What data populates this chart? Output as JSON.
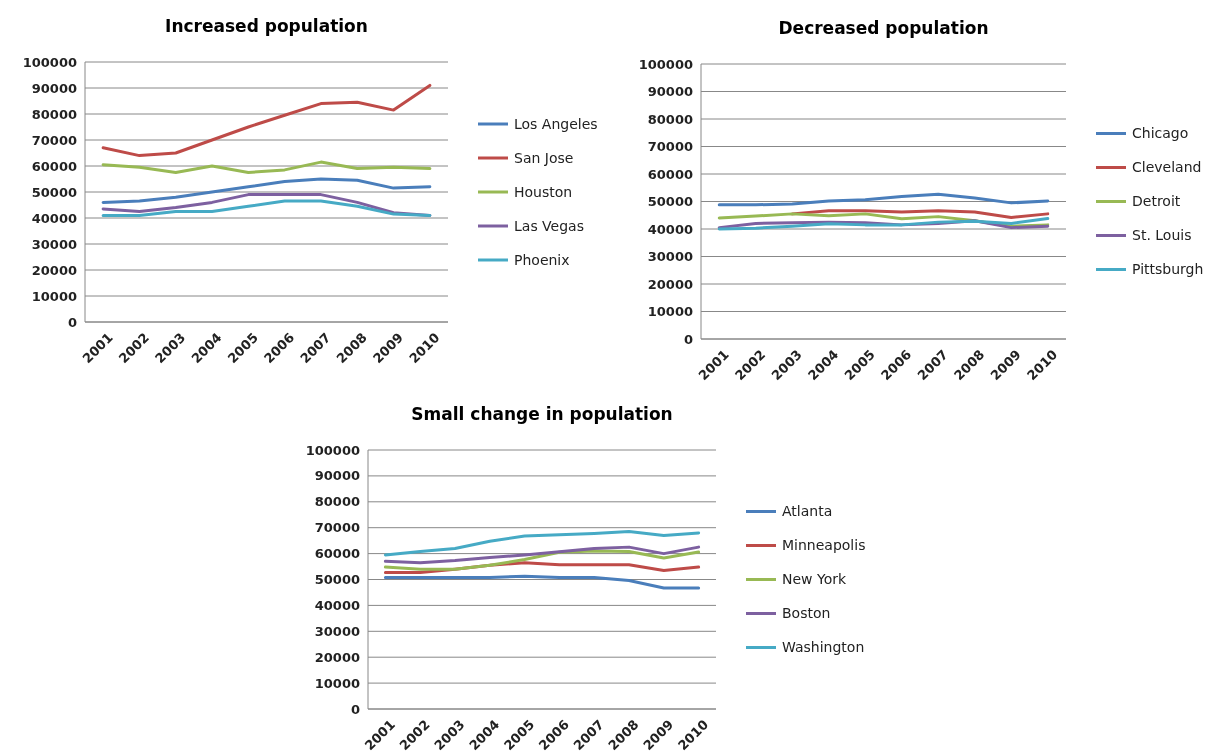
{
  "chart_data": [
    {
      "type": "line",
      "title": "Increased population",
      "categories": [
        "2001",
        "2002",
        "2003",
        "2004",
        "2005",
        "2006",
        "2007",
        "2008",
        "2009",
        "2010"
      ],
      "ylim": [
        0,
        100000
      ],
      "yticks": [
        0,
        10000,
        20000,
        30000,
        40000,
        50000,
        60000,
        70000,
        80000,
        90000,
        100000
      ],
      "grid": "y",
      "legend": "right",
      "series": [
        {
          "name": "Los Angeles",
          "color": "#4a7ebb",
          "values": [
            46000,
            46500,
            48000,
            50000,
            52000,
            54000,
            55000,
            54500,
            51500,
            52000
          ]
        },
        {
          "name": "San Jose",
          "color": "#be4b48",
          "values": [
            67000,
            64000,
            65000,
            70000,
            75000,
            79500,
            84000,
            84500,
            81500,
            91000
          ]
        },
        {
          "name": "Houston",
          "color": "#98b954",
          "values": [
            60500,
            59500,
            57500,
            60000,
            57500,
            58500,
            61500,
            59000,
            59500,
            59000
          ]
        },
        {
          "name": "Las Vegas",
          "color": "#7d60a0",
          "values": [
            43500,
            42500,
            44000,
            46000,
            49000,
            49000,
            49000,
            46000,
            42000,
            41000
          ]
        },
        {
          "name": "Phoenix",
          "color": "#46aac5",
          "values": [
            41000,
            41000,
            42500,
            42500,
            44500,
            46500,
            46500,
            44500,
            41500,
            41000
          ]
        }
      ]
    },
    {
      "type": "line",
      "title": "Decreased population",
      "categories": [
        "2001",
        "2002",
        "2003",
        "2004",
        "2005",
        "2006",
        "2007",
        "2008",
        "2009",
        "2010"
      ],
      "ylim": [
        0,
        100000
      ],
      "yticks": [
        0,
        10000,
        20000,
        30000,
        40000,
        50000,
        60000,
        70000,
        80000,
        90000,
        100000
      ],
      "grid": "y",
      "legend": "right",
      "series": [
        {
          "name": "Chicago",
          "color": "#4a7ebb",
          "values": [
            48800,
            48800,
            49100,
            50200,
            50600,
            51800,
            52600,
            51300,
            49500,
            50200
          ]
        },
        {
          "name": "Cleveland",
          "color": "#be4b48",
          "values": [
            null,
            null,
            45500,
            46600,
            46600,
            46200,
            46600,
            46200,
            44200,
            45500
          ]
        },
        {
          "name": "Detroit",
          "color": "#98b954",
          "values": [
            44000,
            44700,
            45500,
            44800,
            45500,
            43700,
            44500,
            43000,
            41000,
            41500
          ]
        },
        {
          "name": "St. Louis",
          "color": "#7d60a0",
          "values": [
            40500,
            42000,
            42300,
            42500,
            42300,
            41500,
            42000,
            43000,
            40500,
            41000
          ]
        },
        {
          "name": "Pittsburgh",
          "color": "#46aac5",
          "values": [
            40000,
            40300,
            41000,
            41900,
            41500,
            41500,
            42500,
            42800,
            42000,
            43800
          ]
        }
      ]
    },
    {
      "type": "line",
      "title": "Small change in population",
      "categories": [
        "2001",
        "2002",
        "2003",
        "2004",
        "2005",
        "2006",
        "2007",
        "2008",
        "2009",
        "2010"
      ],
      "ylim": [
        0,
        100000
      ],
      "yticks": [
        0,
        10000,
        20000,
        30000,
        40000,
        50000,
        60000,
        70000,
        80000,
        90000,
        100000
      ],
      "grid": "y",
      "legend": "right",
      "series": [
        {
          "name": "Atlanta",
          "color": "#4a7ebb",
          "values": [
            50800,
            50800,
            50800,
            50800,
            51300,
            50800,
            50800,
            49600,
            46700,
            46700
          ]
        },
        {
          "name": "Minneapolis",
          "color": "#be4b48",
          "values": [
            52700,
            52700,
            54000,
            55500,
            56500,
            55700,
            55700,
            55700,
            53500,
            54800
          ]
        },
        {
          "name": "New York",
          "color": "#98b954",
          "values": [
            54800,
            54000,
            54000,
            55500,
            57700,
            60500,
            61000,
            60800,
            58300,
            60600
          ]
        },
        {
          "name": "Boston",
          "color": "#7d60a0",
          "values": [
            57000,
            56500,
            57300,
            58500,
            59500,
            60700,
            62000,
            62500,
            60000,
            62500
          ]
        },
        {
          "name": "Washington",
          "color": "#46aac5",
          "values": [
            59500,
            60800,
            62000,
            64800,
            66800,
            67300,
            67800,
            68500,
            67000,
            68000
          ]
        }
      ]
    }
  ]
}
